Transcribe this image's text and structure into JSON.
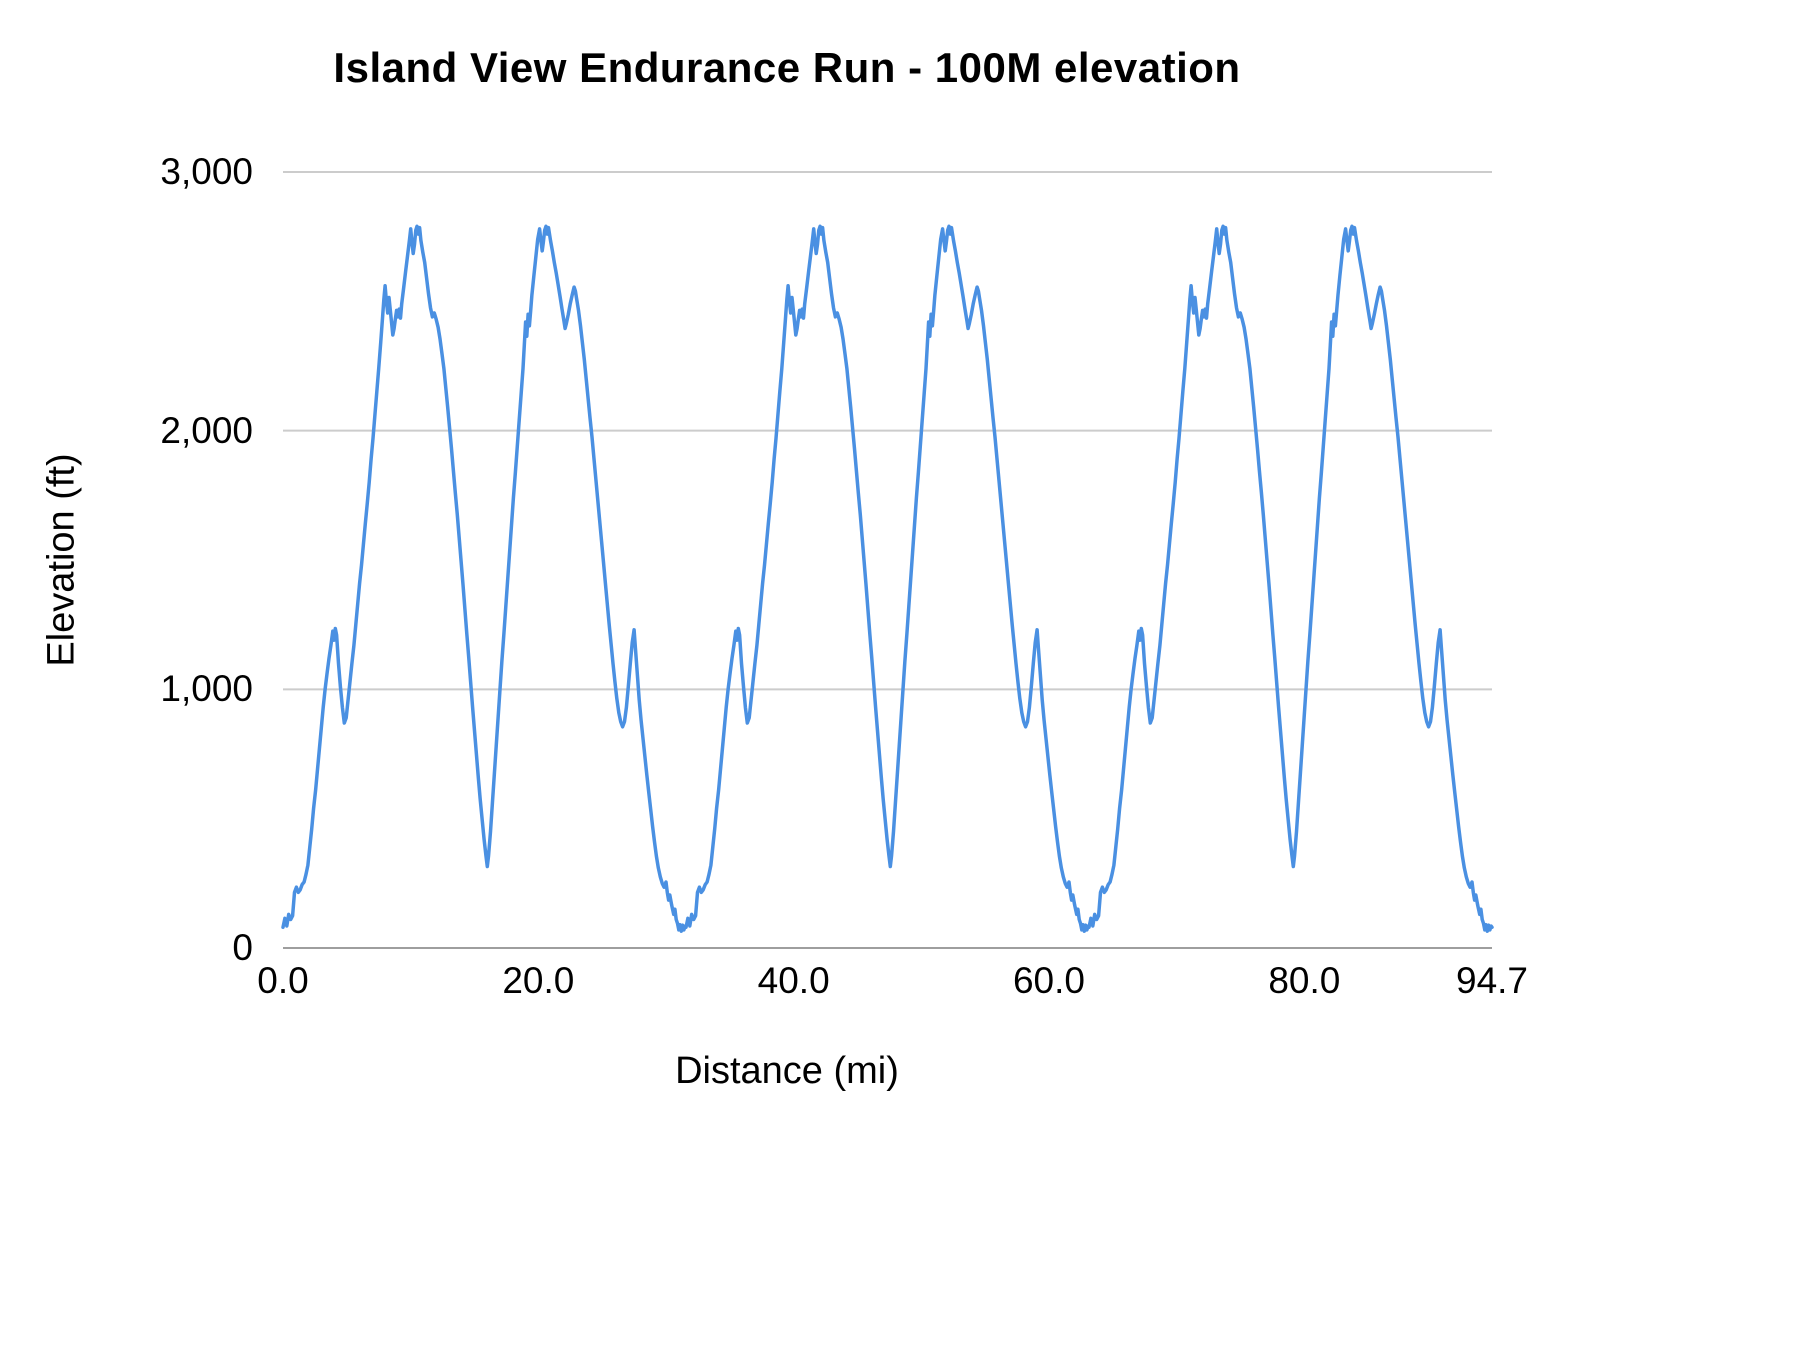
{
  "chart": {
    "title": "Island View Endurance Run - 100M elevation",
    "x_axis_label": "Distance (mi)",
    "y_axis_label": "Elevation (ft)"
  },
  "chart_data": {
    "type": "line",
    "title": "Island View Endurance Run - 100M elevation",
    "xlabel": "Distance (mi)",
    "ylabel": "Elevation (ft)",
    "xlim": [
      0,
      94.7
    ],
    "ylim": [
      0,
      3000
    ],
    "grid": "horizontal",
    "legend": "none",
    "line_color": "#4a90e2",
    "grid_color": "#cccccc",
    "baseline_color": "#9e9e9e",
    "background_color": "#ffffff",
    "x_ticks": [
      {
        "value": 0,
        "label": "0.0"
      },
      {
        "value": 20,
        "label": "20.0"
      },
      {
        "value": 40,
        "label": "40.0"
      },
      {
        "value": 60,
        "label": "60.0"
      },
      {
        "value": 80,
        "label": "80.0"
      },
      {
        "value": 94.7,
        "label": "94.7"
      }
    ],
    "y_ticks": [
      {
        "value": 0,
        "label": "0"
      },
      {
        "value": 1000,
        "label": "1,000"
      },
      {
        "value": 2000,
        "label": "2,000"
      },
      {
        "value": 3000,
        "label": "3,000"
      }
    ],
    "laps": 3,
    "lap_length_mi": 31.5667,
    "series": [
      {
        "name": "Elevation",
        "lap_profile_mi_ft": [
          [
            0.0,
            80
          ],
          [
            0.15,
            115
          ],
          [
            0.3,
            85
          ],
          [
            0.45,
            130
          ],
          [
            0.6,
            110
          ],
          [
            0.75,
            125
          ],
          [
            0.9,
            215
          ],
          [
            1.05,
            235
          ],
          [
            1.2,
            215
          ],
          [
            1.35,
            225
          ],
          [
            1.5,
            245
          ],
          [
            1.65,
            255
          ],
          [
            1.8,
            285
          ],
          [
            1.95,
            320
          ],
          [
            2.1,
            390
          ],
          [
            2.25,
            460
          ],
          [
            2.4,
            540
          ],
          [
            2.55,
            610
          ],
          [
            2.7,
            690
          ],
          [
            2.85,
            770
          ],
          [
            3.0,
            850
          ],
          [
            3.15,
            930
          ],
          [
            3.3,
            1000
          ],
          [
            3.45,
            1060
          ],
          [
            3.6,
            1120
          ],
          [
            3.75,
            1170
          ],
          [
            3.9,
            1225
          ],
          [
            4.0,
            1190
          ],
          [
            4.1,
            1235
          ],
          [
            4.2,
            1210
          ],
          [
            4.35,
            1100
          ],
          [
            4.5,
            1010
          ],
          [
            4.65,
            930
          ],
          [
            4.8,
            870
          ],
          [
            4.95,
            890
          ],
          [
            5.1,
            960
          ],
          [
            5.25,
            1030
          ],
          [
            5.4,
            1100
          ],
          [
            5.55,
            1170
          ],
          [
            5.7,
            1250
          ],
          [
            5.85,
            1330
          ],
          [
            6.0,
            1410
          ],
          [
            6.15,
            1480
          ],
          [
            6.3,
            1560
          ],
          [
            6.45,
            1640
          ],
          [
            6.6,
            1720
          ],
          [
            6.75,
            1800
          ],
          [
            6.9,
            1890
          ],
          [
            7.05,
            1970
          ],
          [
            7.2,
            2060
          ],
          [
            7.35,
            2150
          ],
          [
            7.5,
            2240
          ],
          [
            7.65,
            2340
          ],
          [
            7.8,
            2440
          ],
          [
            7.9,
            2510
          ],
          [
            8.0,
            2560
          ],
          [
            8.1,
            2500
          ],
          [
            8.2,
            2455
          ],
          [
            8.3,
            2515
          ],
          [
            8.4,
            2470
          ],
          [
            8.5,
            2420
          ],
          [
            8.6,
            2370
          ],
          [
            8.7,
            2395
          ],
          [
            8.8,
            2430
          ],
          [
            8.9,
            2465
          ],
          [
            9.0,
            2440
          ],
          [
            9.1,
            2470
          ],
          [
            9.2,
            2435
          ],
          [
            9.3,
            2490
          ],
          [
            9.45,
            2550
          ],
          [
            9.6,
            2615
          ],
          [
            9.75,
            2675
          ],
          [
            9.9,
            2735
          ],
          [
            10.0,
            2780
          ],
          [
            10.1,
            2730
          ],
          [
            10.2,
            2685
          ],
          [
            10.3,
            2720
          ],
          [
            10.4,
            2775
          ],
          [
            10.5,
            2790
          ],
          [
            10.6,
            2760
          ],
          [
            10.7,
            2785
          ],
          [
            10.8,
            2735
          ],
          [
            10.95,
            2690
          ],
          [
            11.1,
            2650
          ],
          [
            11.25,
            2590
          ],
          [
            11.4,
            2530
          ],
          [
            11.55,
            2475
          ],
          [
            11.7,
            2440
          ],
          [
            11.85,
            2455
          ],
          [
            12.0,
            2430
          ],
          [
            12.15,
            2400
          ],
          [
            12.3,
            2355
          ],
          [
            12.45,
            2300
          ],
          [
            12.6,
            2240
          ],
          [
            12.75,
            2165
          ],
          [
            12.9,
            2090
          ],
          [
            13.05,
            2010
          ],
          [
            13.2,
            1930
          ],
          [
            13.35,
            1845
          ],
          [
            13.5,
            1760
          ],
          [
            13.65,
            1675
          ],
          [
            13.8,
            1585
          ],
          [
            13.95,
            1495
          ],
          [
            14.1,
            1405
          ],
          [
            14.25,
            1310
          ],
          [
            14.4,
            1215
          ],
          [
            14.55,
            1120
          ],
          [
            14.7,
            1025
          ],
          [
            14.85,
            930
          ],
          [
            15.0,
            840
          ],
          [
            15.15,
            750
          ],
          [
            15.3,
            660
          ],
          [
            15.45,
            575
          ],
          [
            15.6,
            495
          ],
          [
            15.75,
            420
          ],
          [
            15.9,
            355
          ],
          [
            16.0,
            315
          ],
          [
            16.1,
            355
          ],
          [
            16.25,
            450
          ],
          [
            16.4,
            560
          ],
          [
            16.55,
            670
          ],
          [
            16.7,
            780
          ],
          [
            16.85,
            890
          ],
          [
            17.0,
            1000
          ],
          [
            17.15,
            1110
          ],
          [
            17.3,
            1215
          ],
          [
            17.45,
            1320
          ],
          [
            17.6,
            1425
          ],
          [
            17.75,
            1530
          ],
          [
            17.9,
            1635
          ],
          [
            18.05,
            1740
          ],
          [
            18.2,
            1840
          ],
          [
            18.35,
            1940
          ],
          [
            18.5,
            2040
          ],
          [
            18.65,
            2140
          ],
          [
            18.8,
            2240
          ],
          [
            18.9,
            2330
          ],
          [
            19.0,
            2420
          ],
          [
            19.1,
            2365
          ],
          [
            19.2,
            2450
          ],
          [
            19.3,
            2405
          ],
          [
            19.4,
            2465
          ],
          [
            19.5,
            2525
          ],
          [
            19.65,
            2600
          ],
          [
            19.8,
            2670
          ],
          [
            19.95,
            2740
          ],
          [
            20.1,
            2780
          ],
          [
            20.2,
            2735
          ],
          [
            20.3,
            2695
          ],
          [
            20.4,
            2730
          ],
          [
            20.5,
            2775
          ],
          [
            20.6,
            2790
          ],
          [
            20.7,
            2760
          ],
          [
            20.8,
            2785
          ],
          [
            20.95,
            2735
          ],
          [
            21.1,
            2695
          ],
          [
            21.25,
            2650
          ],
          [
            21.4,
            2610
          ],
          [
            21.55,
            2565
          ],
          [
            21.7,
            2520
          ],
          [
            21.85,
            2470
          ],
          [
            22.0,
            2425
          ],
          [
            22.1,
            2395
          ],
          [
            22.2,
            2415
          ],
          [
            22.35,
            2450
          ],
          [
            22.5,
            2490
          ],
          [
            22.65,
            2525
          ],
          [
            22.8,
            2555
          ],
          [
            22.9,
            2540
          ],
          [
            23.0,
            2510
          ],
          [
            23.15,
            2465
          ],
          [
            23.3,
            2405
          ],
          [
            23.45,
            2340
          ],
          [
            23.6,
            2275
          ],
          [
            23.75,
            2200
          ],
          [
            23.9,
            2125
          ],
          [
            24.05,
            2050
          ],
          [
            24.2,
            1975
          ],
          [
            24.35,
            1895
          ],
          [
            24.5,
            1815
          ],
          [
            24.65,
            1735
          ],
          [
            24.8,
            1655
          ],
          [
            24.95,
            1575
          ],
          [
            25.1,
            1495
          ],
          [
            25.25,
            1410
          ],
          [
            25.4,
            1330
          ],
          [
            25.55,
            1250
          ],
          [
            25.7,
            1175
          ],
          [
            25.85,
            1100
          ],
          [
            26.0,
            1030
          ],
          [
            26.15,
            965
          ],
          [
            26.3,
            910
          ],
          [
            26.45,
            875
          ],
          [
            26.6,
            855
          ],
          [
            26.75,
            875
          ],
          [
            26.9,
            930
          ],
          [
            27.05,
            1010
          ],
          [
            27.2,
            1100
          ],
          [
            27.35,
            1180
          ],
          [
            27.5,
            1230
          ],
          [
            27.6,
            1160
          ],
          [
            27.75,
            1060
          ],
          [
            27.9,
            960
          ],
          [
            28.05,
            880
          ],
          [
            28.2,
            810
          ],
          [
            28.35,
            740
          ],
          [
            28.5,
            670
          ],
          [
            28.65,
            600
          ],
          [
            28.8,
            535
          ],
          [
            28.95,
            470
          ],
          [
            29.1,
            410
          ],
          [
            29.25,
            355
          ],
          [
            29.4,
            310
          ],
          [
            29.55,
            275
          ],
          [
            29.7,
            250
          ],
          [
            29.85,
            235
          ],
          [
            30.0,
            255
          ],
          [
            30.1,
            215
          ],
          [
            30.2,
            185
          ],
          [
            30.3,
            205
          ],
          [
            30.45,
            165
          ],
          [
            30.6,
            130
          ],
          [
            30.7,
            150
          ],
          [
            30.8,
            110
          ],
          [
            30.9,
            95
          ],
          [
            31.0,
            70
          ],
          [
            31.1,
            90
          ],
          [
            31.2,
            65
          ],
          [
            31.3,
            88
          ],
          [
            31.4,
            70
          ],
          [
            31.5,
            85
          ],
          [
            31.5667,
            80
          ]
        ]
      }
    ]
  }
}
